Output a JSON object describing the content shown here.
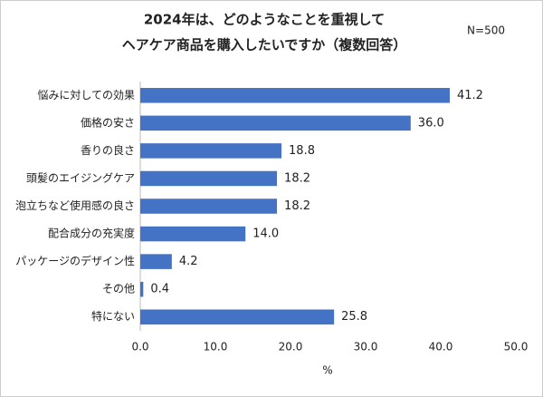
{
  "chart_data": {
    "type": "barh",
    "title": [
      "2024年は、どのようなことを重視して",
      "ヘアケア商品を購入したいですか（複数回答）"
    ],
    "annotation": "N=500",
    "xlabel": "%",
    "categories": [
      "悩みに対しての効果",
      "価格の安さ",
      "香りの良さ",
      "頭髪のエイジングケア",
      "泡立ちなど使用感の良さ",
      "配合成分の充実度",
      "パッケージのデザイン性",
      "その他",
      "特にない"
    ],
    "values": [
      41.2,
      36.0,
      18.8,
      18.2,
      18.2,
      14.0,
      4.2,
      0.4,
      25.8
    ],
    "value_labels": [
      "41.2",
      "36.0",
      "18.8",
      "18.2",
      "18.2",
      "14.0",
      "4.2",
      "0.4",
      "25.8"
    ],
    "color": "#4472c4",
    "xlim": [
      0,
      50
    ],
    "xticks": [
      {
        "value": 0,
        "label": "0.0"
      },
      {
        "value": 10,
        "label": "10.0"
      },
      {
        "value": 20,
        "label": "20.0"
      },
      {
        "value": 30,
        "label": "30.0"
      },
      {
        "value": 40,
        "label": "40.0"
      },
      {
        "value": 50,
        "label": "50.0"
      }
    ],
    "grid": false
  }
}
